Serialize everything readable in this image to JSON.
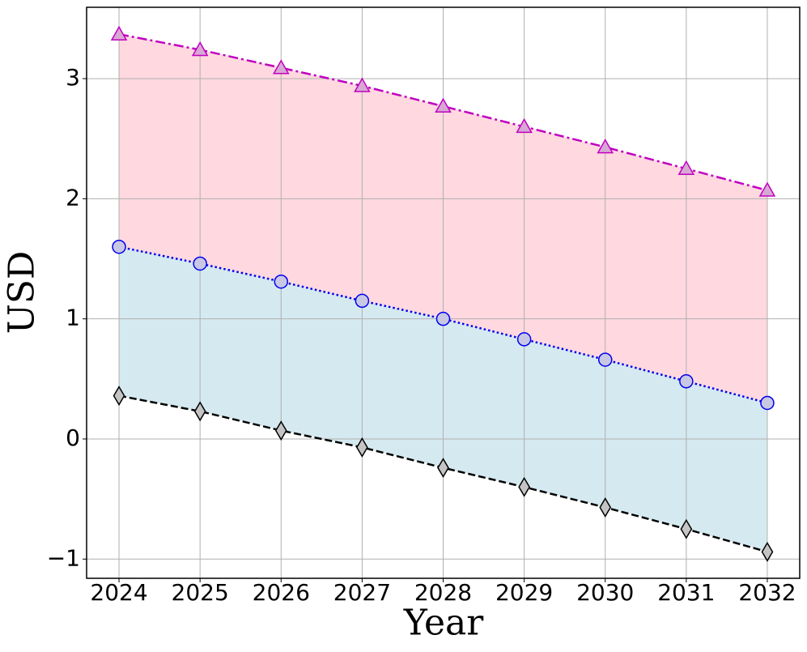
{
  "chart_data": {
    "type": "line",
    "x_label": "Year",
    "y_label": "USD",
    "x": [
      2024,
      2025,
      2026,
      2027,
      2028,
      2029,
      2030,
      2031,
      2032
    ],
    "series": [
      {
        "color": "#000000",
        "marker": "diamond",
        "marker_fill": "#c4c4c4",
        "dash": "dashed",
        "values": [
          0.36,
          0.23,
          0.07,
          -0.07,
          -0.24,
          -0.4,
          -0.57,
          -0.75,
          -0.94
        ]
      },
      {
        "color": "#0000ee",
        "marker": "circle",
        "marker_fill": "#c8c8e4",
        "dash": "dotted",
        "fill_color": "#d5e9f0",
        "values": [
          1.6,
          1.46,
          1.31,
          1.15,
          1.0,
          0.83,
          0.66,
          0.48,
          0.3
        ]
      },
      {
        "color": "#c000c0",
        "marker": "triangle",
        "marker_fill": "#d8a8d4",
        "dash": "dashdot",
        "fill_color": "#ffd8e0",
        "values": [
          3.37,
          3.24,
          3.09,
          2.94,
          2.77,
          2.6,
          2.43,
          2.25,
          2.07
        ]
      }
    ],
    "xlim": [
      2023.6,
      2032.4
    ],
    "xticks": [
      2024,
      2025,
      2026,
      2027,
      2028,
      2029,
      2030,
      2031,
      2032
    ],
    "ylim": [
      -1.16,
      3.594
    ],
    "yticks": [
      {
        "value": -1,
        "label": "−1"
      },
      0,
      1,
      2,
      3
    ],
    "grid": true
  }
}
